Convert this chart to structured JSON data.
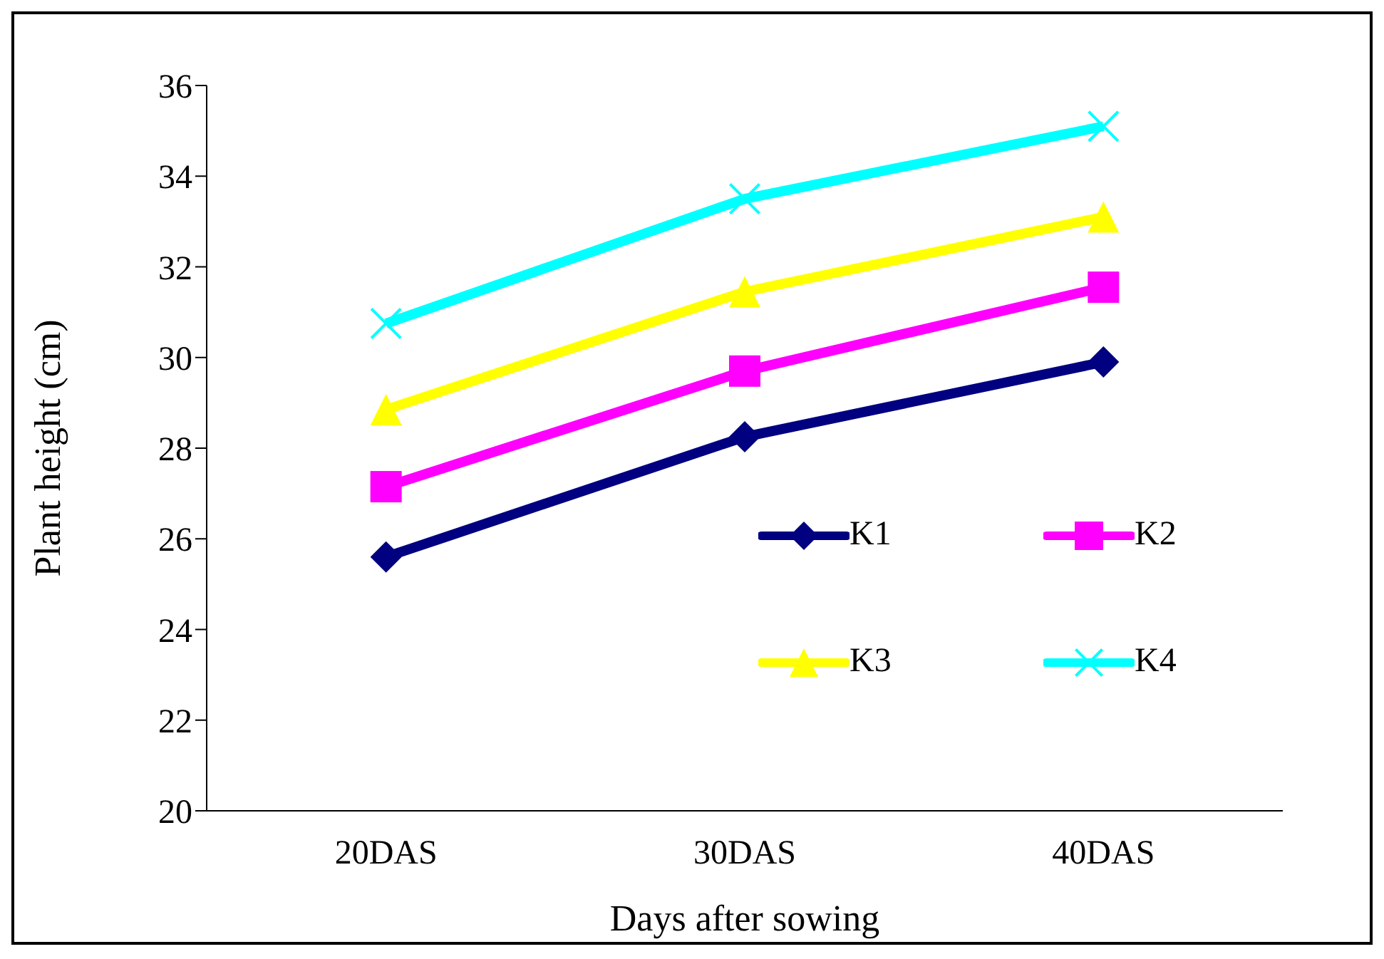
{
  "chart_data": {
    "type": "line",
    "xlabel": "Days after sowing",
    "ylabel": "Plant height (cm)",
    "categories": [
      "20DAS",
      "30DAS",
      "40DAS"
    ],
    "series": [
      {
        "name": "K1",
        "color": "#000080",
        "marker": "diamond",
        "values": [
          25.6,
          28.25,
          29.9
        ]
      },
      {
        "name": "K2",
        "color": "#ff00ff",
        "marker": "square",
        "values": [
          27.15,
          29.7,
          31.55
        ]
      },
      {
        "name": "K3",
        "color": "#ffff00",
        "marker": "triangle",
        "values": [
          28.85,
          31.45,
          33.1
        ]
      },
      {
        "name": "K4",
        "color": "#00ffff",
        "marker": "cross",
        "values": [
          30.75,
          33.5,
          35.1
        ]
      }
    ],
    "ylim": [
      20,
      36
    ],
    "yticks": [
      20,
      22,
      24,
      26,
      28,
      30,
      32,
      34,
      36
    ],
    "grid": false,
    "legend": "right",
    "line_style": "solid"
  }
}
